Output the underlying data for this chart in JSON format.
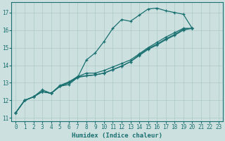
{
  "title": "",
  "xlabel": "Humidex (Indice chaleur)",
  "ylabel": "",
  "bg_color": "#cde0e0",
  "grid_color": "#adc8c8",
  "line_color": "#1a7070",
  "xlim": [
    -0.5,
    23.5
  ],
  "ylim": [
    10.8,
    17.6
  ],
  "yticks": [
    11,
    12,
    13,
    14,
    15,
    16,
    17
  ],
  "xticks": [
    0,
    1,
    2,
    3,
    4,
    5,
    6,
    7,
    8,
    9,
    10,
    11,
    12,
    13,
    14,
    15,
    16,
    17,
    18,
    19,
    20,
    21,
    22,
    23
  ],
  "series": [
    {
      "x": [
        0,
        1,
        2,
        3,
        4,
        5,
        6,
        7,
        8,
        9,
        10,
        11,
        12,
        13,
        14,
        15,
        16,
        17,
        18,
        19,
        20
      ],
      "y": [
        11.3,
        12.0,
        12.2,
        12.6,
        12.4,
        12.8,
        12.9,
        13.3,
        14.3,
        14.7,
        15.35,
        16.1,
        16.6,
        16.5,
        16.85,
        17.2,
        17.25,
        17.1,
        17.0,
        16.9,
        16.1
      ]
    },
    {
      "x": [
        0,
        1,
        2,
        3,
        4,
        5,
        6,
        7,
        8,
        9,
        10,
        11,
        12,
        13,
        14,
        15,
        16,
        17,
        18,
        19,
        20
      ],
      "y": [
        11.3,
        12.0,
        12.2,
        12.5,
        12.4,
        12.8,
        13.0,
        13.35,
        13.55,
        13.55,
        13.7,
        13.9,
        14.1,
        14.3,
        14.65,
        15.0,
        15.3,
        15.6,
        15.85,
        16.1,
        16.1
      ]
    },
    {
      "x": [
        0,
        1,
        2,
        3,
        4,
        5,
        6,
        7,
        8,
        9,
        10,
        11,
        12,
        13,
        14,
        15,
        16,
        17,
        18,
        19,
        20
      ],
      "y": [
        11.3,
        12.0,
        12.2,
        12.5,
        12.4,
        12.8,
        13.0,
        13.3,
        13.4,
        13.45,
        13.55,
        13.75,
        13.95,
        14.2,
        14.55,
        14.9,
        15.15,
        15.45,
        15.7,
        16.0,
        16.1
      ]
    },
    {
      "x": [
        0,
        1,
        2,
        3,
        4,
        5,
        6,
        7,
        8,
        9,
        10,
        11,
        12,
        13,
        14,
        15,
        16,
        17,
        18,
        19,
        20
      ],
      "y": [
        11.3,
        12.0,
        12.2,
        12.5,
        12.4,
        12.85,
        13.05,
        13.35,
        13.4,
        13.45,
        13.55,
        13.75,
        13.95,
        14.2,
        14.6,
        14.95,
        15.2,
        15.5,
        15.75,
        16.05,
        16.1
      ]
    }
  ],
  "marker": "+",
  "markersize": 3,
  "linewidth": 0.9,
  "tick_fontsize": 5.5,
  "xlabel_fontsize": 6.5
}
